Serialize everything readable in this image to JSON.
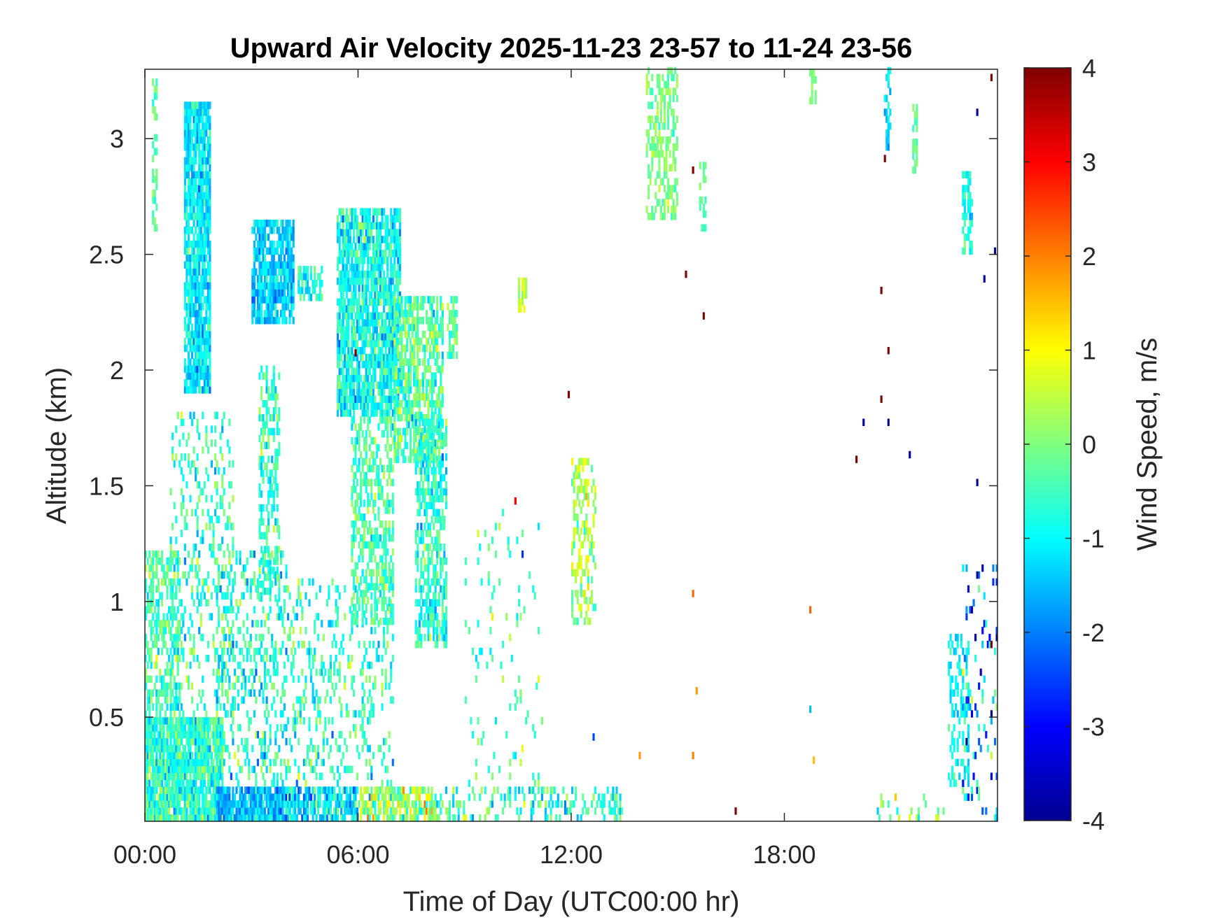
{
  "chart_data": {
    "type": "heatmap",
    "title": "Upward Air Velocity 2025-11-23 23-57 to 11-24 23-56",
    "xlabel": "Time of Day (UTC00:00 hr)",
    "ylabel": "Altitude (km)",
    "x_unit": "hours UTC",
    "xlim": [
      0,
      24
    ],
    "ylim": [
      0.05,
      3.3
    ],
    "x_ticks": [
      {
        "value": 0,
        "label": "00:00"
      },
      {
        "value": 6,
        "label": "06:00"
      },
      {
        "value": 12,
        "label": "12:00"
      },
      {
        "value": 18,
        "label": "18:00"
      }
    ],
    "y_ticks": [
      {
        "value": 0.5,
        "label": "0.5"
      },
      {
        "value": 1,
        "label": "1"
      },
      {
        "value": 1.5,
        "label": "1.5"
      },
      {
        "value": 2,
        "label": "2"
      },
      {
        "value": 2.5,
        "label": "2.5"
      },
      {
        "value": 3,
        "label": "3"
      }
    ],
    "colorbar": {
      "label": "Wind Speed, m/s",
      "colormap": "jet",
      "range": [
        -4,
        4
      ],
      "ticks": [
        {
          "value": 4,
          "label": "4"
        },
        {
          "value": 3,
          "label": "3"
        },
        {
          "value": 2,
          "label": "2"
        },
        {
          "value": 1,
          "label": "1"
        },
        {
          "value": 0,
          "label": "0"
        },
        {
          "value": -1,
          "label": "-1"
        },
        {
          "value": -2,
          "label": "-2"
        },
        {
          "value": -3,
          "label": "-3"
        },
        {
          "value": -4,
          "label": "-4"
        }
      ]
    },
    "grid": false,
    "regions": [
      {
        "t0": 0.0,
        "t1": 2.2,
        "z0": 0.05,
        "z1": 0.5,
        "density": 0.92,
        "mean": -0.6,
        "spread": 0.9
      },
      {
        "t0": 0.0,
        "t1": 1.0,
        "z0": 0.5,
        "z1": 1.2,
        "density": 0.55,
        "mean": -0.4,
        "spread": 0.8
      },
      {
        "t0": 0.2,
        "t1": 0.35,
        "z0": 2.6,
        "z1": 3.25,
        "density": 0.6,
        "mean": -0.3,
        "spread": 0.5
      },
      {
        "t0": 1.1,
        "t1": 1.85,
        "z0": 1.9,
        "z1": 3.15,
        "density": 0.85,
        "mean": -1.1,
        "spread": 0.7
      },
      {
        "t0": 0.7,
        "t1": 2.5,
        "z0": 0.5,
        "z1": 1.8,
        "density": 0.2,
        "mean": -0.6,
        "spread": 1.0
      },
      {
        "t0": 2.0,
        "t1": 4.2,
        "z0": 0.05,
        "z1": 0.2,
        "density": 0.9,
        "mean": -1.5,
        "spread": 0.8
      },
      {
        "t0": 2.0,
        "t1": 4.0,
        "z0": 0.2,
        "z1": 1.2,
        "density": 0.25,
        "mean": -0.7,
        "spread": 1.0
      },
      {
        "t0": 3.0,
        "t1": 4.2,
        "z0": 2.2,
        "z1": 2.65,
        "density": 0.8,
        "mean": -1.4,
        "spread": 0.7
      },
      {
        "t0": 3.2,
        "t1": 3.8,
        "z0": 1.0,
        "z1": 2.0,
        "density": 0.45,
        "mean": -0.5,
        "spread": 0.8
      },
      {
        "t0": 4.3,
        "t1": 5.0,
        "z0": 2.3,
        "z1": 2.45,
        "density": 0.6,
        "mean": -0.8,
        "spread": 0.6
      },
      {
        "t0": 4.0,
        "t1": 6.0,
        "z0": 0.05,
        "z1": 0.2,
        "density": 0.75,
        "mean": -1.2,
        "spread": 1.0
      },
      {
        "t0": 4.0,
        "t1": 7.0,
        "z0": 0.2,
        "z1": 1.1,
        "density": 0.2,
        "mean": -0.6,
        "spread": 1.0
      },
      {
        "t0": 5.4,
        "t1": 7.2,
        "z0": 1.8,
        "z1": 2.68,
        "density": 0.82,
        "mean": -0.9,
        "spread": 0.9
      },
      {
        "t0": 5.8,
        "t1": 7.0,
        "z0": 0.9,
        "z1": 1.8,
        "density": 0.5,
        "mean": -0.4,
        "spread": 0.7
      },
      {
        "t0": 6.0,
        "t1": 8.2,
        "z0": 0.05,
        "z1": 0.2,
        "density": 0.7,
        "mean": 0.2,
        "spread": 1.2
      },
      {
        "t0": 7.0,
        "t1": 8.4,
        "z0": 1.6,
        "z1": 2.3,
        "density": 0.7,
        "mean": -0.3,
        "spread": 0.9
      },
      {
        "t0": 7.6,
        "t1": 8.5,
        "z0": 0.8,
        "z1": 1.8,
        "density": 0.55,
        "mean": -0.7,
        "spread": 0.8
      },
      {
        "t0": 8.5,
        "t1": 8.8,
        "z0": 2.05,
        "z1": 2.3,
        "density": 0.6,
        "mean": -0.2,
        "spread": 0.6
      },
      {
        "t0": 8.2,
        "t1": 13.5,
        "z0": 0.05,
        "z1": 0.2,
        "density": 0.3,
        "mean": -0.6,
        "spread": 1.1
      },
      {
        "t0": 9.0,
        "t1": 11.2,
        "z0": 0.2,
        "z1": 1.4,
        "density": 0.05,
        "mean": -0.5,
        "spread": 1.0
      },
      {
        "t0": 10.5,
        "t1": 10.75,
        "z0": 2.25,
        "z1": 2.38,
        "density": 0.7,
        "mean": 0.4,
        "spread": 0.5
      },
      {
        "t0": 12.0,
        "t1": 12.7,
        "z0": 0.9,
        "z1": 1.6,
        "density": 0.4,
        "mean": 0.3,
        "spread": 0.8
      },
      {
        "t0": 14.1,
        "t1": 15.0,
        "z0": 2.65,
        "z1": 3.3,
        "density": 0.45,
        "mean": 0.0,
        "spread": 0.5
      },
      {
        "t0": 15.6,
        "t1": 15.8,
        "z0": 2.6,
        "z1": 2.9,
        "density": 0.45,
        "mean": -0.3,
        "spread": 0.4
      },
      {
        "t0": 18.7,
        "t1": 18.9,
        "z0": 3.15,
        "z1": 3.3,
        "density": 0.5,
        "mean": -0.2,
        "spread": 0.4
      },
      {
        "t0": 20.8,
        "t1": 21.0,
        "z0": 2.95,
        "z1": 3.3,
        "density": 0.55,
        "mean": -1.2,
        "spread": 0.6
      },
      {
        "t0": 21.6,
        "t1": 21.75,
        "z0": 2.85,
        "z1": 3.15,
        "density": 0.5,
        "mean": -0.2,
        "spread": 0.4
      },
      {
        "t0": 23.0,
        "t1": 23.3,
        "z0": 2.5,
        "z1": 2.85,
        "density": 0.6,
        "mean": -0.9,
        "spread": 0.6
      },
      {
        "t0": 22.6,
        "t1": 23.2,
        "z0": 0.2,
        "z1": 0.85,
        "density": 0.4,
        "mean": -1.0,
        "spread": 0.5
      },
      {
        "t0": 23.0,
        "t1": 24.0,
        "z0": 0.05,
        "z1": 1.2,
        "density": 0.12,
        "mean": -1.5,
        "spread": 2.0
      },
      {
        "t0": 20.5,
        "t1": 22.6,
        "z0": 0.05,
        "z1": 0.15,
        "density": 0.15,
        "mean": 0.0,
        "spread": 1.0
      }
    ],
    "isolated_points": [
      {
        "t": 15.4,
        "z": 2.85,
        "w": 4.0
      },
      {
        "t": 15.2,
        "z": 2.4,
        "w": 4.0
      },
      {
        "t": 15.7,
        "z": 2.22,
        "w": 4.0
      },
      {
        "t": 11.9,
        "z": 1.88,
        "w": 4.0
      },
      {
        "t": 15.4,
        "z": 1.02,
        "w": 2.2
      },
      {
        "t": 15.5,
        "z": 0.6,
        "w": 1.8
      },
      {
        "t": 15.4,
        "z": 0.32,
        "w": 2.0
      },
      {
        "t": 18.7,
        "z": 0.95,
        "w": 2.2
      },
      {
        "t": 18.7,
        "z": 0.52,
        "w": -1.5
      },
      {
        "t": 18.8,
        "z": 0.3,
        "w": 1.5
      },
      {
        "t": 16.6,
        "z": 0.08,
        "w": 4.0
      },
      {
        "t": 20.8,
        "z": 2.9,
        "w": 4.0
      },
      {
        "t": 20.7,
        "z": 2.33,
        "w": 4.0
      },
      {
        "t": 20.9,
        "z": 2.07,
        "w": 4.0
      },
      {
        "t": 20.7,
        "z": 1.86,
        "w": 4.0
      },
      {
        "t": 20.2,
        "z": 1.76,
        "w": -3.8
      },
      {
        "t": 20.9,
        "z": 1.76,
        "w": -3.8
      },
      {
        "t": 21.5,
        "z": 1.62,
        "w": -3.8
      },
      {
        "t": 20.0,
        "z": 1.6,
        "w": 4.0
      },
      {
        "t": 23.8,
        "z": 3.25,
        "w": 4.0
      },
      {
        "t": 23.4,
        "z": 3.1,
        "w": -3.8
      },
      {
        "t": 23.9,
        "z": 2.5,
        "w": -3.8
      },
      {
        "t": 23.6,
        "z": 2.38,
        "w": -3.8
      },
      {
        "t": 23.4,
        "z": 1.5,
        "w": -3.8
      },
      {
        "t": 23.4,
        "z": 1.1,
        "w": -3.8
      },
      {
        "t": 23.8,
        "z": 0.8,
        "w": 4.0
      },
      {
        "t": 10.4,
        "z": 1.42,
        "w": 3.0
      },
      {
        "t": 5.9,
        "z": 2.06,
        "w": 4.0
      },
      {
        "t": 13.9,
        "z": 0.32,
        "w": 1.8
      },
      {
        "t": 12.6,
        "z": 0.4,
        "w": -2.5
      }
    ]
  }
}
